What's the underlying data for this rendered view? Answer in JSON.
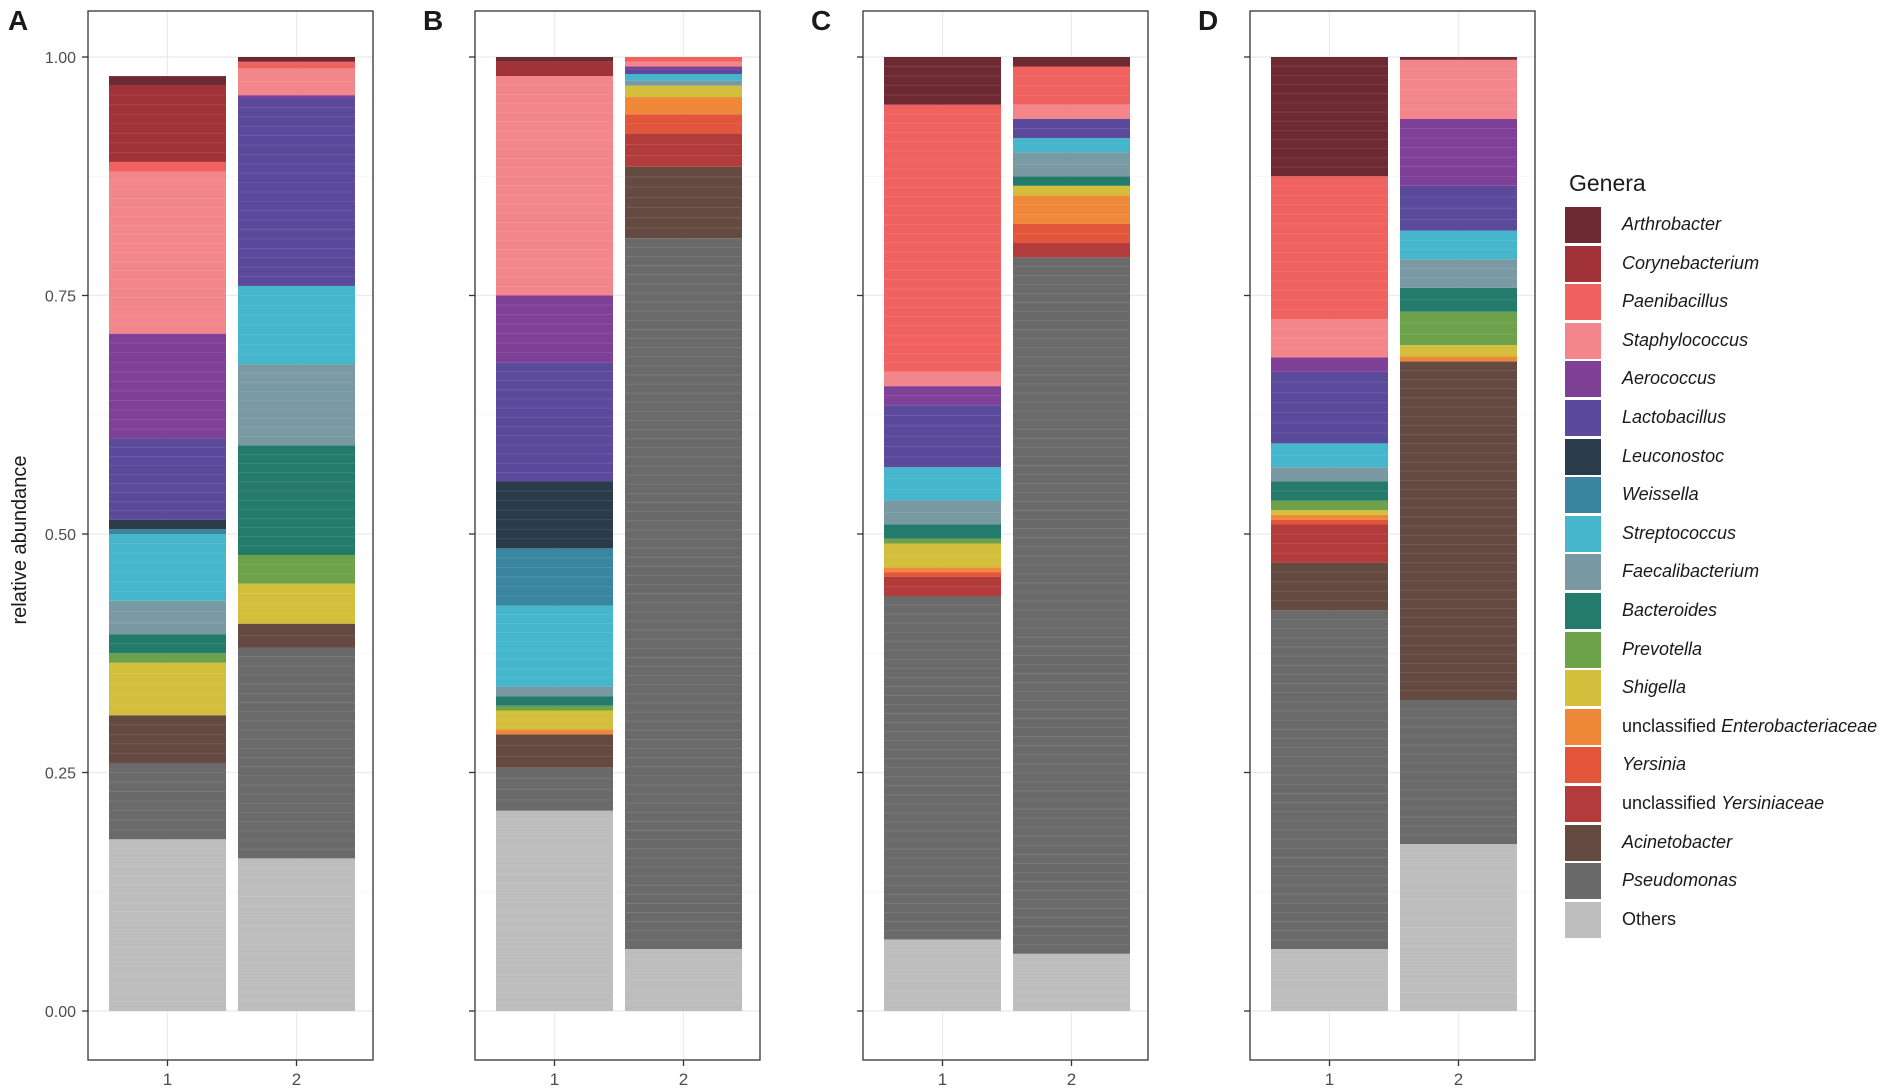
{
  "chart_data": {
    "type": "bar",
    "stacked": true,
    "ylabel": "relative abundance",
    "ylim": [
      0,
      1
    ],
    "yticks": [
      "0.00",
      "0.25",
      "0.50",
      "0.75",
      "1.00"
    ],
    "categories": [
      "1",
      "2"
    ],
    "genera": [
      "Arthrobacter",
      "Corynebacterium",
      "Paenibacillus",
      "Staphylococcus",
      "Aerococcus",
      "Lactobacillus",
      "Leuconostoc",
      "Weissella",
      "Streptococcus",
      "Faecalibacterium",
      "Bacteroides",
      "Prevotella",
      "Shigella",
      "unclassified Enterobacteriaceae",
      "Yersinia",
      "unclassified Yersiniaceae",
      "Acinetobacter",
      "Pseudomonas",
      "Others"
    ],
    "colors": [
      "#6e2a33",
      "#a03238",
      "#f0625f",
      "#f3868b",
      "#7f4097",
      "#5b4a9b",
      "#2a3b4a",
      "#3a86a0",
      "#45b6cb",
      "#7a9aa3",
      "#257b6b",
      "#6ea24a",
      "#d4bf3d",
      "#f0883a",
      "#e2553b",
      "#b23c3c",
      "#654a42",
      "#6a6a6a",
      "#bdbdbd"
    ],
    "panels": [
      {
        "label": "A",
        "series": [
          {
            "category": "1",
            "values": [
              0.01,
              0.08,
              0.01,
              0.17,
              0.11,
              0.085,
              0.01,
              0.005,
              0.07,
              0.035,
              0.02,
              0.01,
              0.055,
              0.0,
              0.0,
              0.0,
              0.05,
              0.08,
              0.18
            ]
          },
          {
            "category": "2",
            "values": [
              0.005,
              0.0,
              0.007,
              0.028,
              0.003,
              0.197,
              0.0,
              0.0,
              0.082,
              0.085,
              0.115,
              0.03,
              0.042,
              0.0,
              0.0,
              0.0,
              0.025,
              0.221,
              0.16
            ]
          }
        ]
      },
      {
        "label": "B",
        "series": [
          {
            "category": "1",
            "values": [
              0.005,
              0.015,
              0.0,
              0.23,
              0.07,
              0.125,
              0.07,
              0.06,
              0.085,
              0.01,
              0.01,
              0.005,
              0.02,
              0.005,
              0.0,
              0.0,
              0.035,
              0.045,
              0.21
            ]
          },
          {
            "category": "2",
            "values": [
              0.0,
              0.0,
              0.005,
              0.005,
              0.003,
              0.005,
              0.0,
              0.0,
              0.007,
              0.005,
              0.0,
              0.0,
              0.012,
              0.018,
              0.02,
              0.035,
              0.075,
              0.745,
              0.065
            ]
          }
        ]
      },
      {
        "label": "C",
        "series": [
          {
            "category": "1",
            "values": [
              0.05,
              0.0,
              0.28,
              0.015,
              0.02,
              0.065,
              0.0,
              0.0,
              0.035,
              0.025,
              0.015,
              0.005,
              0.025,
              0.005,
              0.005,
              0.02,
              0.0,
              0.36,
              0.075
            ]
          },
          {
            "category": "2",
            "values": [
              0.01,
              0.0,
              0.04,
              0.015,
              0.0,
              0.02,
              0.0,
              0.0,
              0.015,
              0.025,
              0.01,
              0.0,
              0.01,
              0.03,
              0.02,
              0.015,
              0.0,
              0.73,
              0.06
            ]
          }
        ]
      },
      {
        "label": "D",
        "series": [
          {
            "category": "1",
            "values": [
              0.125,
              0.0,
              0.15,
              0.04,
              0.015,
              0.075,
              0.0,
              0.0,
              0.025,
              0.015,
              0.02,
              0.01,
              0.005,
              0.005,
              0.005,
              0.04,
              0.05,
              0.355,
              0.065
            ]
          },
          {
            "category": "2",
            "values": [
              0.003,
              0.0,
              0.0,
              0.062,
              0.07,
              0.047,
              0.0,
              0.0,
              0.03,
              0.03,
              0.025,
              0.035,
              0.012,
              0.005,
              0.0,
              0.0,
              0.355,
              0.151,
              0.175
            ]
          }
        ]
      }
    ],
    "legend": {
      "title": "Genera",
      "position": "right",
      "items": [
        {
          "prefix": "",
          "name": "Arthrobacter"
        },
        {
          "prefix": "",
          "name": "Corynebacterium"
        },
        {
          "prefix": "",
          "name": "Paenibacillus"
        },
        {
          "prefix": "",
          "name": "Staphylococcus"
        },
        {
          "prefix": "",
          "name": "Aerococcus"
        },
        {
          "prefix": "",
          "name": "Lactobacillus"
        },
        {
          "prefix": "",
          "name": "Leuconostoc"
        },
        {
          "prefix": "",
          "name": "Weissella"
        },
        {
          "prefix": "",
          "name": "Streptococcus"
        },
        {
          "prefix": "",
          "name": "Faecalibacterium"
        },
        {
          "prefix": "",
          "name": "Bacteroides"
        },
        {
          "prefix": "",
          "name": "Prevotella"
        },
        {
          "prefix": "",
          "name": "Shigella"
        },
        {
          "prefix": "unclassified ",
          "name": "Enterobacteriaceae"
        },
        {
          "prefix": "",
          "name": "Yersinia"
        },
        {
          "prefix": "unclassified ",
          "name": "Yersiniaceae"
        },
        {
          "prefix": "",
          "name": "Acinetobacter"
        },
        {
          "prefix": "",
          "name": "Pseudomonas"
        },
        {
          "prefix": "",
          "name": "Others",
          "plain": true
        }
      ]
    }
  }
}
